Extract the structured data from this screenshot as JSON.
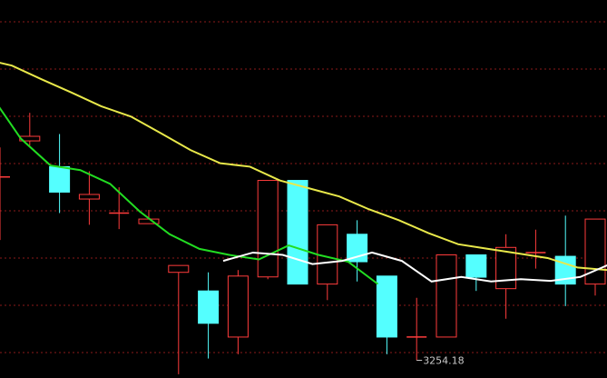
{
  "chart_data": {
    "type": "candlestick",
    "ylim": [
      3248,
      3380
    ],
    "grid": true,
    "colors": {
      "background": "#000000",
      "grid": "#8b1a1a",
      "up": "#ff3c3c",
      "down": "#54ffff",
      "ma_white": "#ffffff",
      "ma_green": "#22dd22",
      "ma_yellow": "#e8e84a"
    },
    "candles": [
      {
        "o": 3318.2,
        "c": 3318.2,
        "h": 3328.5,
        "l": 3296.2
      },
      {
        "o": 3330.8,
        "c": 3332.4,
        "h": 3340.6,
        "l": 3329.2
      },
      {
        "o": 3321.8,
        "c": 3312.9,
        "h": 3333.2,
        "l": 3305.6
      },
      {
        "o": 3310.5,
        "c": 3312.1,
        "h": 3320.2,
        "l": 3301.5
      },
      {
        "o": 3305.6,
        "c": 3305.6,
        "h": 3314.6,
        "l": 3300.0
      },
      {
        "o": 3301.9,
        "c": 3303.5,
        "h": 3306.7,
        "l": 3301.9
      },
      {
        "o": 3284.9,
        "c": 3287.3,
        "h": 3287.3,
        "l": 3249.3
      },
      {
        "o": 3278.4,
        "c": 3267.1,
        "h": 3284.9,
        "l": 3254.8
      },
      {
        "o": 3262.3,
        "c": 3283.6,
        "h": 3285.7,
        "l": 3256.3
      },
      {
        "o": 3283.3,
        "c": 3317.0,
        "h": 3317.0,
        "l": 3282.5
      },
      {
        "o": 3317.0,
        "c": 3280.8,
        "h": 3317.0,
        "l": 3280.8
      },
      {
        "o": 3280.8,
        "c": 3301.5,
        "h": 3301.5,
        "l": 3275.2
      },
      {
        "o": 3298.2,
        "c": 3288.6,
        "h": 3303.1,
        "l": 3281.7
      },
      {
        "o": 3283.6,
        "c": 3262.3,
        "h": 3283.6,
        "l": 3256.3
      },
      {
        "o": 3262.3,
        "c": 3262.3,
        "h": 3276.0,
        "l": 3254.2
      },
      {
        "o": 3262.3,
        "c": 3291.0,
        "h": 3291.0,
        "l": 3262.3
      },
      {
        "o": 3291.0,
        "c": 3283.2,
        "h": 3291.0,
        "l": 3278.4
      },
      {
        "o": 3279.2,
        "c": 3293.6,
        "h": 3298.2,
        "l": 3268.7
      },
      {
        "o": 3291.8,
        "c": 3291.8,
        "h": 3299.8,
        "l": 3286.2
      },
      {
        "o": 3290.5,
        "c": 3280.8,
        "h": 3304.7,
        "l": 3273.1
      },
      {
        "o": 3280.8,
        "c": 3303.5,
        "h": 3303.5,
        "l": 3276.8
      },
      {
        "o": 3288.2,
        "c": 3282.5,
        "h": 3294.3,
        "l": 3277.6
      }
    ],
    "ma_white": [
      3288.9,
      3291.8,
      3291.0,
      3287.8,
      3288.9,
      3291.8,
      3288.9,
      3281.7,
      3283.3,
      3281.7,
      3282.5,
      3281.9,
      3283.3,
      3287.8,
      3289.4,
      3290.2
    ],
    "ma_green": [
      3346.7,
      3331.6,
      3322.2,
      3320.6,
      3315.8,
      3306.1,
      3298.2,
      3293.1,
      3291.0,
      3289.4,
      3294.3,
      3291.0,
      3288.6,
      3280.8
    ],
    "ma_yellow": [
      3359.5,
      3357.1,
      3352.3,
      3347.7,
      3342.9,
      3339.3,
      3333.5,
      3327.6,
      3323.0,
      3321.8,
      3317.0,
      3314.2,
      3311.4,
      3306.9,
      3303.1,
      3298.6,
      3294.7,
      3293.1,
      3291.5,
      3289.9,
      3286.6,
      3285.7,
      3284.9,
      3283.3
    ],
    "annotations": {
      "low_label": "3254.18",
      "low_value": 3254.18
    }
  }
}
